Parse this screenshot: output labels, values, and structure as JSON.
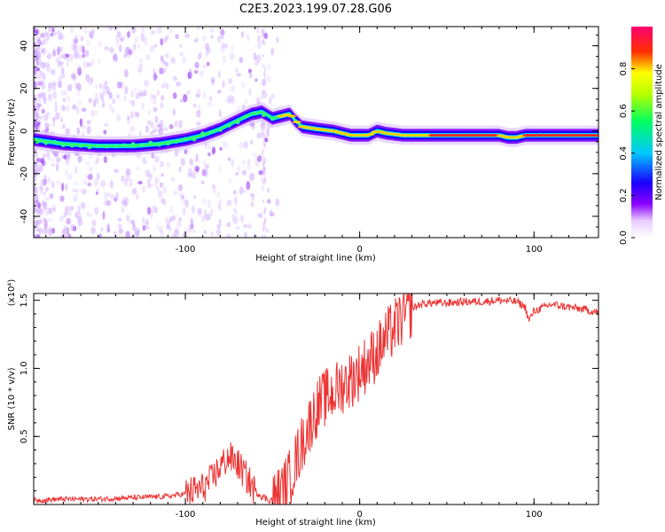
{
  "title": "C2E3.2023.199.07.28.G06",
  "chart_data": [
    {
      "type": "heatmap",
      "name": "spectrogram",
      "xlabel": "Height of straight line (km)",
      "ylabel": "Frequency (Hz)",
      "xlim": [
        -187,
        137
      ],
      "ylim": [
        -50,
        49
      ],
      "x_ticks": [
        -100,
        0,
        100
      ],
      "y_ticks": [
        -40,
        -20,
        0,
        20,
        40
      ],
      "ridge": {
        "x": [
          -187,
          -170,
          -150,
          -130,
          -115,
          -100,
          -90,
          -80,
          -70,
          -62,
          -56,
          -50,
          -45,
          -40,
          -37,
          -33,
          -25,
          -15,
          -5,
          5,
          10,
          15,
          25,
          40,
          60,
          80,
          85,
          90,
          95,
          110,
          137
        ],
        "y": [
          -4,
          -6,
          -7,
          -7,
          -6,
          -4,
          -2,
          1,
          5,
          8,
          9,
          6,
          7,
          8,
          5,
          2,
          1,
          0,
          -2,
          -2,
          0,
          -1,
          -2,
          -2,
          -2,
          -2,
          -3,
          -3,
          -2,
          -2,
          -2
        ]
      },
      "colorbar": {
        "label": "Normalized spectral amplitude",
        "ticks": [
          0.0,
          0.2,
          0.4,
          0.6,
          0.8
        ],
        "range": [
          0,
          1
        ],
        "colors": [
          "#ffffff",
          "#7a00ff",
          "#0000ff",
          "#00d8ff",
          "#00ff40",
          "#ffff00",
          "#ff0000",
          "#ff0080"
        ]
      }
    },
    {
      "type": "line",
      "name": "snr",
      "xlabel": "Height of straight line (km)",
      "ylabel": "SNR (10 * v/v)",
      "scale_label": "(x10⁴)",
      "xlim": [
        -187,
        137
      ],
      "ylim": [
        0,
        1.55
      ],
      "x_ticks": [
        -100,
        0,
        100
      ],
      "y_ticks": [
        0.5,
        1.0,
        1.5
      ],
      "y_tick_labels": [
        "0.5",
        "1.0",
        "1.5"
      ],
      "color": "#ee3333",
      "series": {
        "x": [
          -187,
          -170,
          -150,
          -130,
          -110,
          -100,
          -95,
          -90,
          -85,
          -80,
          -75,
          -70,
          -65,
          -60,
          -55,
          -50,
          -45,
          -40,
          -35,
          -30,
          -25,
          -20,
          -15,
          -10,
          -5,
          0,
          5,
          10,
          15,
          20,
          25,
          30,
          35,
          40,
          50,
          60,
          70,
          80,
          90,
          95,
          97,
          100,
          110,
          120,
          130,
          137
        ],
        "y": [
          0.03,
          0.04,
          0.04,
          0.05,
          0.06,
          0.08,
          0.1,
          0.12,
          0.18,
          0.28,
          0.35,
          0.3,
          0.2,
          0.1,
          0.05,
          0.03,
          0.08,
          0.2,
          0.38,
          0.55,
          0.7,
          0.78,
          0.82,
          0.88,
          0.92,
          0.98,
          1.05,
          1.12,
          1.22,
          1.3,
          1.38,
          1.44,
          1.47,
          1.48,
          1.48,
          1.49,
          1.49,
          1.5,
          1.49,
          1.45,
          1.35,
          1.42,
          1.47,
          1.45,
          1.43,
          1.41
        ]
      }
    }
  ]
}
